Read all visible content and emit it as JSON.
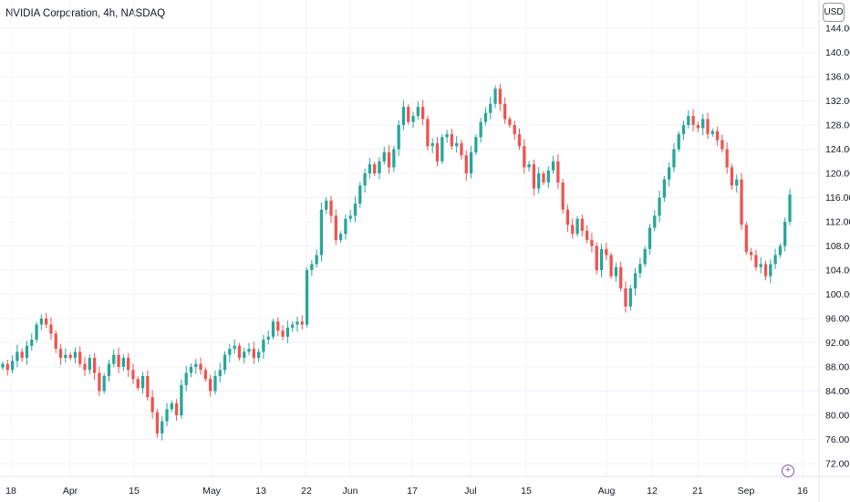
{
  "header": {
    "symbol_title": "NVIDIA Corporation, 4h, NASDAQ",
    "currency": "USD"
  },
  "icons": {
    "scale_button": "crosshair-icon"
  },
  "colors": {
    "up": "#26a69a",
    "down": "#ef5350",
    "grid": "#f0f3fa",
    "text": "#131722",
    "accent": "#7e57c2"
  },
  "chart_data": {
    "type": "candlestick",
    "title": "NVIDIA Corporation, 4h, NASDAQ",
    "xlabel": "",
    "ylabel": "",
    "currency": "USD",
    "ylim": [
      70,
      146
    ],
    "y_ticks": [
      "144.00",
      "140.00",
      "136.00",
      "132.00",
      "128.00",
      "124.00",
      "120.00",
      "116.00",
      "112.00",
      "108.00",
      "104.00",
      "100.00",
      "96.00",
      "92.00",
      "88.00",
      "84.00",
      "80.00",
      "76.00",
      "72.00"
    ],
    "x_ticks": [
      "18",
      "Apr",
      "15",
      "May",
      "13",
      "22",
      "Jun",
      "17",
      "Jul",
      "15",
      "Aug",
      "12",
      "21",
      "Sep",
      "16"
    ],
    "grid": true,
    "x_period": "2024-03-18 to 2024-09-16",
    "series": [
      {
        "close_values": [
          88.5,
          87.5,
          89,
          90.5,
          89.5,
          91.5,
          92.5,
          95,
          96,
          95,
          93.5,
          91,
          89.5,
          90,
          89.5,
          90.5,
          88.5,
          87.5,
          89.5,
          87,
          84,
          86.5,
          88.5,
          90,
          88,
          89.5,
          87.5,
          86,
          84.5,
          86.5,
          83,
          80.5,
          77,
          79,
          81,
          82,
          80,
          85,
          87,
          88,
          88.5,
          87.5,
          86,
          84,
          86.5,
          87.5,
          90,
          91,
          91.5,
          89.5,
          90.5,
          91,
          89.5,
          90.5,
          92.5,
          93,
          95.5,
          94,
          93,
          94.5,
          95,
          95.5,
          95,
          104,
          105,
          106.5,
          114,
          115.5,
          113,
          109,
          110,
          112.5,
          113,
          115,
          118,
          120,
          121.5,
          120,
          122,
          123.5,
          121,
          124,
          128,
          131,
          128.5,
          129.5,
          131,
          129,
          124.5,
          125,
          122,
          126,
          126.5,
          124.5,
          125,
          123,
          120,
          123.5,
          126,
          128.5,
          130,
          131.5,
          134,
          131.5,
          129,
          128,
          126.5,
          124.5,
          121,
          121.5,
          117.5,
          120,
          118.5,
          120.5,
          122,
          118.5,
          114,
          111.5,
          110,
          112.5,
          110.5,
          109,
          108,
          104,
          107.5,
          106.5,
          103,
          104.5,
          101,
          98,
          101,
          103.5,
          105,
          107.5,
          111,
          113,
          116,
          119,
          121,
          124,
          126.5,
          128,
          129.5,
          128,
          127.5,
          129,
          126.5,
          127,
          125.5,
          124,
          121,
          118,
          119,
          111.5,
          107,
          106.5,
          104.5,
          105,
          103,
          105,
          106.5,
          108,
          112,
          116.5
        ]
      }
    ]
  }
}
